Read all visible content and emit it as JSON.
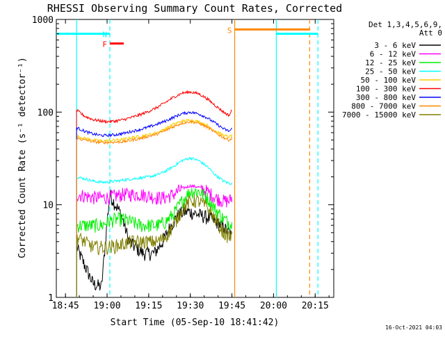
{
  "chart_data": {
    "type": "line",
    "title": "RHESSI Observing Summary Count Rates, Corrected",
    "xlabel": "Start Time (05-Sep-10 18:41:42)",
    "ylabel": "Corrected Count Rate (s⁻¹ detector⁻¹)",
    "y_scale": "log",
    "ylim": [
      1,
      1000
    ],
    "xlim": [
      "18:41:42",
      "20:21:42"
    ],
    "x_tick_labels": [
      "18:45",
      "19:00",
      "19:15",
      "19:30",
      "19:45",
      "20:00",
      "20:15"
    ],
    "y_tick_labels": [
      "1",
      "10",
      "100",
      "1000"
    ],
    "legend_header": [
      "Det 1,3,4,5,6,9,",
      "Att 0"
    ],
    "legend_position": "right",
    "timestamp": "16-Oct-2021 04:03",
    "series": [
      {
        "name": "3 - 6 keV",
        "color": "#000000",
        "x": [
          "18:49",
          "18:52",
          "18:55",
          "18:58",
          "19:00",
          "19:01",
          "19:03",
          "19:05",
          "19:08",
          "19:10",
          "19:13",
          "19:17",
          "19:20",
          "19:23",
          "19:26",
          "19:29",
          "19:32",
          "19:35",
          "19:38",
          "19:41",
          "19:44",
          "19:45"
        ],
        "values": [
          3.5,
          2.2,
          1.4,
          1.3,
          6.5,
          13,
          10,
          8,
          4,
          3.5,
          3,
          3,
          4,
          6,
          8,
          8.5,
          8,
          7.5,
          7,
          6,
          5,
          4.5
        ]
      },
      {
        "name": "6 - 12 keV",
        "color": "#ff00ff",
        "x": [
          "18:49",
          "18:52",
          "18:55",
          "18:58",
          "19:00",
          "19:03",
          "19:06",
          "19:09",
          "19:12",
          "19:15",
          "19:18",
          "19:21",
          "19:24",
          "19:27",
          "19:30",
          "19:33",
          "19:36",
          "19:39",
          "19:42",
          "19:44",
          "19:45"
        ],
        "values": [
          13,
          12.5,
          12,
          12,
          12,
          12.5,
          13,
          13,
          13,
          12.5,
          12,
          12,
          13,
          15,
          16,
          15.5,
          14,
          12,
          11,
          11,
          12
        ]
      },
      {
        "name": "12 - 25 keV",
        "color": "#00ee00",
        "x": [
          "18:49",
          "18:52",
          "18:55",
          "18:58",
          "19:00",
          "19:03",
          "19:06",
          "19:09",
          "19:12",
          "19:15",
          "19:18",
          "19:21",
          "19:24",
          "19:27",
          "19:30",
          "19:33",
          "19:36",
          "19:39",
          "19:42",
          "19:44",
          "19:45"
        ],
        "values": [
          6,
          6,
          6,
          6,
          6.5,
          7,
          7,
          6.5,
          6,
          6,
          6,
          6.5,
          8,
          11,
          14,
          14,
          12,
          9,
          7,
          6.5,
          6
        ]
      },
      {
        "name": "25 - 50 keV",
        "color": "#00ffff",
        "x": [
          "18:49",
          "18:52",
          "18:55",
          "18:58",
          "19:00",
          "19:03",
          "19:06",
          "19:09",
          "19:12",
          "19:15",
          "19:18",
          "19:21",
          "19:24",
          "19:27",
          "19:30",
          "19:33",
          "19:36",
          "19:39",
          "19:42",
          "19:44",
          "19:45"
        ],
        "values": [
          20,
          19,
          18,
          17.5,
          17.5,
          18,
          18.5,
          19,
          19.5,
          20,
          21,
          23,
          26,
          30,
          32,
          30,
          26,
          21,
          18,
          17,
          17
        ]
      },
      {
        "name": "50 - 100 keV",
        "color": "#ffcc00",
        "x": [
          "18:49",
          "18:52",
          "18:55",
          "18:58",
          "19:00",
          "19:03",
          "19:06",
          "19:09",
          "19:12",
          "19:15",
          "19:18",
          "19:21",
          "19:24",
          "19:27",
          "19:30",
          "19:33",
          "19:36",
          "19:39",
          "19:42",
          "19:44",
          "19:45"
        ],
        "values": [
          55,
          52,
          50,
          49,
          49,
          50,
          51,
          53,
          55,
          57,
          60,
          66,
          74,
          80,
          82,
          79,
          72,
          63,
          56,
          54,
          56
        ]
      },
      {
        "name": "100 - 300 keV",
        "color": "#ff0000",
        "x": [
          "18:49",
          "18:52",
          "18:55",
          "18:58",
          "19:00",
          "19:03",
          "19:06",
          "19:09",
          "19:12",
          "19:15",
          "19:18",
          "19:21",
          "19:24",
          "19:27",
          "19:30",
          "19:33",
          "19:36",
          "19:39",
          "19:42",
          "19:44",
          "19:45"
        ],
        "values": [
          105,
          90,
          83,
          80,
          79,
          80,
          83,
          88,
          94,
          102,
          112,
          127,
          145,
          160,
          165,
          158,
          140,
          118,
          100,
          92,
          105
        ]
      },
      {
        "name": "300 - 800 keV",
        "color": "#0000ff",
        "x": [
          "18:49",
          "18:52",
          "18:55",
          "18:58",
          "19:00",
          "19:03",
          "19:06",
          "19:09",
          "19:12",
          "19:15",
          "19:18",
          "19:21",
          "19:24",
          "19:27",
          "19:30",
          "19:33",
          "19:36",
          "19:39",
          "19:42",
          "19:44",
          "19:45"
        ],
        "values": [
          68,
          62,
          58,
          56,
          56,
          57,
          59,
          62,
          65,
          69,
          74,
          80,
          88,
          96,
          100,
          96,
          87,
          76,
          66,
          62,
          66
        ]
      },
      {
        "name": "800 - 7000 keV",
        "color": "#ff8800",
        "x": [
          "18:49",
          "18:52",
          "18:55",
          "18:58",
          "19:00",
          "19:03",
          "19:06",
          "19:09",
          "19:12",
          "19:15",
          "19:18",
          "19:21",
          "19:24",
          "19:27",
          "19:30",
          "19:33",
          "19:36",
          "19:39",
          "19:42",
          "19:44",
          "19:45"
        ],
        "values": [
          52,
          50,
          48,
          47,
          47,
          47.5,
          48,
          50,
          52,
          55,
          58,
          63,
          70,
          76,
          79,
          76,
          69,
          60,
          53,
          50,
          52
        ]
      },
      {
        "name": "7000 - 15000 keV",
        "color": "#808000",
        "x": [
          "18:49",
          "18:52",
          "18:55",
          "18:58",
          "19:00",
          "19:03",
          "19:06",
          "19:09",
          "19:12",
          "19:15",
          "19:18",
          "19:21",
          "19:24",
          "19:27",
          "19:30",
          "19:33",
          "19:36",
          "19:39",
          "19:42",
          "19:44",
          "19:45"
        ],
        "values": [
          4.5,
          4,
          3.5,
          3.5,
          3.5,
          3.6,
          3.8,
          4,
          4,
          4,
          4,
          4.5,
          6,
          9,
          11,
          11,
          9.5,
          7,
          5,
          4.5,
          4.5
        ]
      }
    ],
    "flags": [
      {
        "label": "",
        "color": "#00ffff",
        "level": 700,
        "start": "18:41:42",
        "end": "19:01",
        "dashed_end": "19:01"
      },
      {
        "label": "N",
        "color": "#00ffff",
        "level": 700,
        "start": "19:01",
        "end": "19:01"
      },
      {
        "label": "F",
        "color": "#ff0000",
        "level": 550,
        "start": "19:01",
        "end": "19:06"
      },
      {
        "label": "S",
        "color": "#ff8800",
        "level": 780,
        "start": "19:46",
        "end": "20:13"
      },
      {
        "label": "",
        "color": "#00ffff",
        "level": 700,
        "start": "20:01",
        "end": "20:16"
      }
    ],
    "vertical_lines": [
      {
        "x": "18:49",
        "color": "#00ffff",
        "style": "solid"
      },
      {
        "x": "19:01",
        "color": "#00ffff",
        "style": "dashed"
      },
      {
        "x": "19:46",
        "color": "#ff8800",
        "style": "solid"
      },
      {
        "x": "20:01",
        "color": "#00ffff",
        "style": "solid"
      },
      {
        "x": "20:13",
        "color": "#ff8800",
        "style": "dashed"
      },
      {
        "x": "20:16",
        "color": "#00ffff",
        "style": "dashed"
      }
    ]
  }
}
